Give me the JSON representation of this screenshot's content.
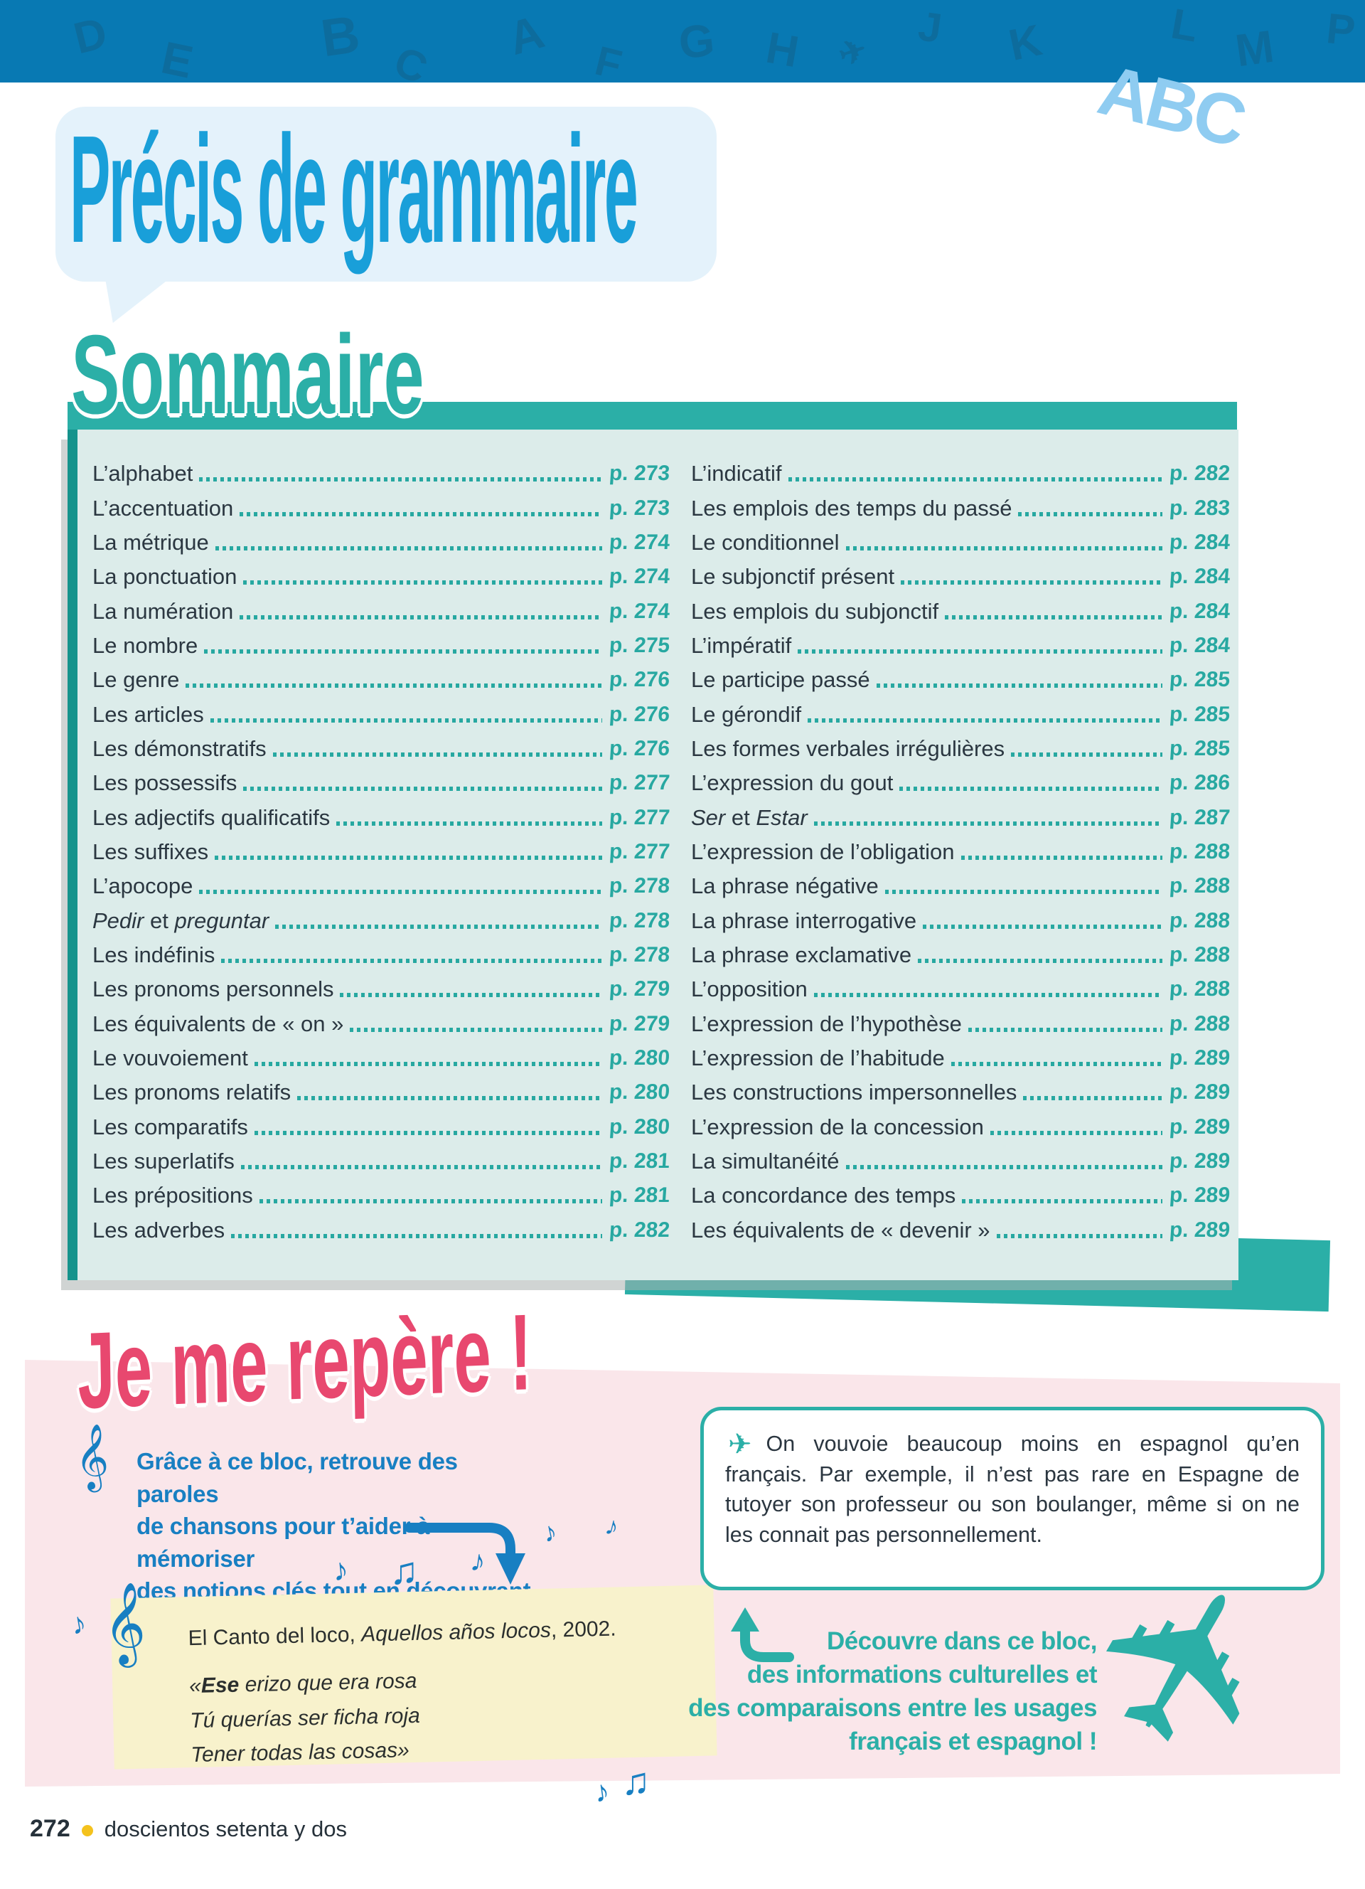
{
  "banner": {
    "letters": [
      "D",
      "E",
      "B",
      "C",
      "A",
      "F",
      "G",
      "H",
      "J",
      "K",
      "L",
      "M",
      "P"
    ]
  },
  "header": {
    "title": "Précis de grammaire",
    "abc": "ABC"
  },
  "sommaire": {
    "heading": "Sommaire",
    "left": [
      {
        "label": "L’alphabet",
        "page": "p. 273"
      },
      {
        "label": "L’accentuation",
        "page": "p. 273"
      },
      {
        "label": "La métrique",
        "page": "p. 274"
      },
      {
        "label": "La ponctuation",
        "page": "p. 274"
      },
      {
        "label": "La numération",
        "page": "p. 274"
      },
      {
        "label": "Le nombre",
        "page": "p. 275"
      },
      {
        "label": "Le genre",
        "page": "p. 276"
      },
      {
        "label": "Les articles",
        "page": "p. 276"
      },
      {
        "label": "Les démonstratifs",
        "page": "p. 276"
      },
      {
        "label": "Les possessifs",
        "page": "p. 277"
      },
      {
        "label": "Les adjectifs qualificatifs",
        "page": "p. 277"
      },
      {
        "label": "Les suffixes",
        "page": "p. 277"
      },
      {
        "label": "L’apocope",
        "page": "p. 278"
      },
      {
        "label": "*Pedir* et *preguntar*",
        "page": "p. 278"
      },
      {
        "label": "Les indéfinis",
        "page": "p. 278"
      },
      {
        "label": "Les pronoms personnels",
        "page": "p. 279"
      },
      {
        "label": "Les équivalents de « on »",
        "page": "p. 279"
      },
      {
        "label": "Le vouvoiement",
        "page": "p. 280"
      },
      {
        "label": "Les pronoms relatifs",
        "page": "p. 280"
      },
      {
        "label": "Les comparatifs",
        "page": "p. 280"
      },
      {
        "label": "Les superlatifs",
        "page": "p. 281"
      },
      {
        "label": "Les prépositions",
        "page": "p. 281"
      },
      {
        "label": "Les adverbes",
        "page": "p. 282"
      }
    ],
    "right": [
      {
        "label": "L’indicatif",
        "page": "p. 282"
      },
      {
        "label": "Les emplois des temps du passé",
        "page": "p. 283"
      },
      {
        "label": "Le conditionnel",
        "page": "p. 284"
      },
      {
        "label": "Le subjonctif présent",
        "page": "p. 284"
      },
      {
        "label": "Les emplois du subjonctif",
        "page": "p. 284"
      },
      {
        "label": "L’impératif",
        "page": "p. 284"
      },
      {
        "label": "Le participe passé",
        "page": "p. 285"
      },
      {
        "label": "Le gérondif",
        "page": "p. 285"
      },
      {
        "label": "Les formes verbales irrégulières",
        "page": "p. 285"
      },
      {
        "label": "L’expression du gout",
        "page": "p. 286"
      },
      {
        "label": "*Ser* et *Estar*",
        "page": "p. 287"
      },
      {
        "label": "L’expression de l’obligation",
        "page": "p. 288"
      },
      {
        "label": "La phrase négative",
        "page": "p. 288"
      },
      {
        "label": "La phrase interrogative",
        "page": "p. 288"
      },
      {
        "label": "La phrase exclamative",
        "page": "p. 288"
      },
      {
        "label": "L’opposition",
        "page": "p. 288"
      },
      {
        "label": "L’expression de l’hypothèse",
        "page": "p. 288"
      },
      {
        "label": "L’expression de l’habitude",
        "page": "p. 289"
      },
      {
        "label": "Les constructions impersonnelles",
        "page": "p. 289"
      },
      {
        "label": "L’expression de la concession",
        "page": "p. 289"
      },
      {
        "label": "La simultanéité",
        "page": "p. 289"
      },
      {
        "label": "La concordance des temps",
        "page": "p. 289"
      },
      {
        "label": "Les équivalents de « devenir »",
        "page": "p. 289"
      }
    ]
  },
  "repere": {
    "heading": "Je me repère !",
    "intro": "Grâce à ce bloc, retrouve des paroles\nde chansons pour t’aider à mémoriser\ndes notions clés tout en découvrant\nla culture hispanique !",
    "song_ref": "El Canto del loco, *Aquellos años locos*, 2002.",
    "lyrics": [
      {
        "line": "«**Ese** erizo que era rosa"
      },
      {
        "line": "Tú querías ser ficha roja"
      },
      {
        "line": "Tener todas las cosas»"
      }
    ],
    "culture_note": "On vouvoie beaucoup moins en espagnol qu’en français. Par exemple, il n’est pas rare en Espagne de tutoyer son professeur ou son boulanger, même si on ne les connait pas personnellement.",
    "culture_caption": "Découvre dans ce bloc,\ndes informations culturelles et\ndes comparaisons entre les usages\nfrançais et espagnol !"
  },
  "icons": {
    "plane": "✈",
    "eighth_note": "♪",
    "beamed_notes": "♫",
    "treble_clef": "𝄞"
  },
  "footer": {
    "page_number": "272",
    "page_words": "doscientos setenta y dos"
  },
  "colors": {
    "banner_blue": "#0879b3",
    "title_blue": "#199fd9",
    "bubble_blue": "#e4f2fb",
    "teal": "#2bafa7",
    "teal_dark": "#15938c",
    "panel_mint": "#dcecea",
    "text_dark": "#2b3741",
    "pink": "#e8486f",
    "pink_bg": "#fae6ea",
    "blue_text": "#187fc2",
    "note_yellow": "#f8f2cc",
    "footer_yellow": "#f4c21d"
  }
}
